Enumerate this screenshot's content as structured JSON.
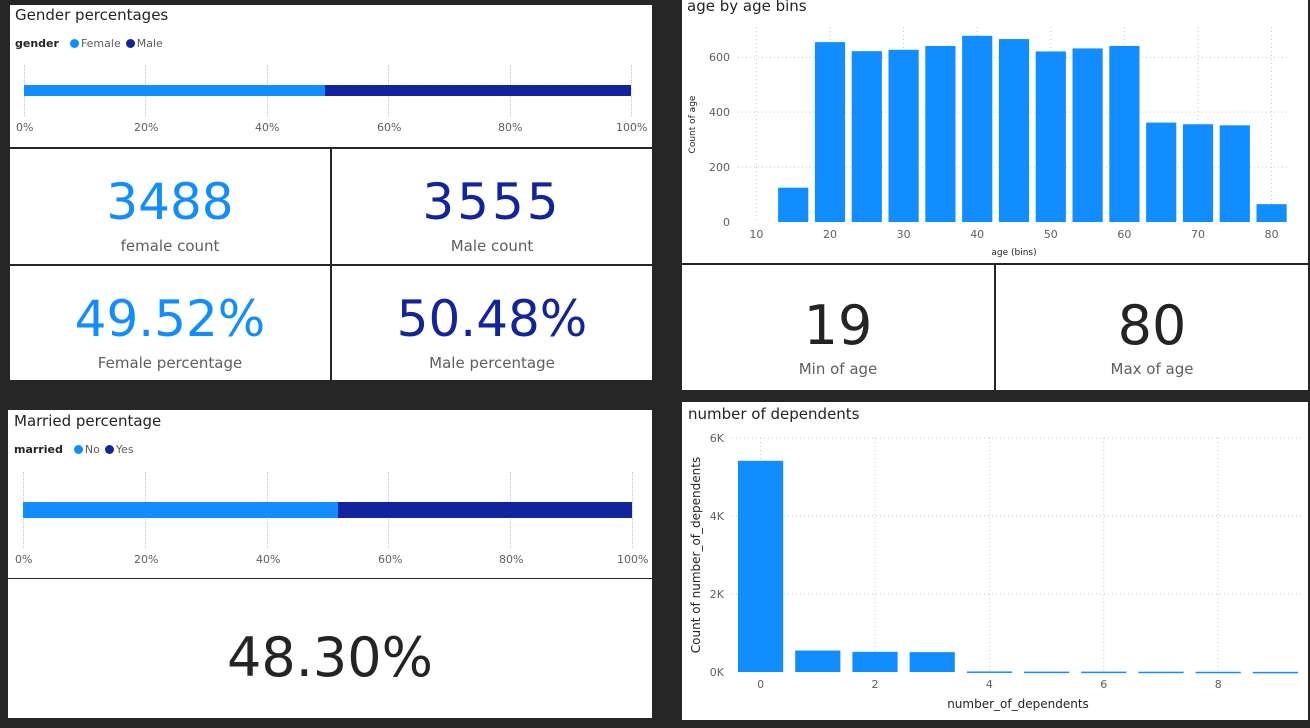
{
  "colors": {
    "light_blue": "#118dff",
    "dark_blue": "#12239e",
    "dark_text": "#252423"
  },
  "gender": {
    "title": "Gender percentages",
    "legend_title": "gender",
    "legend": [
      {
        "name": "Female",
        "color": "#118dff"
      },
      {
        "name": "Male",
        "color": "#12239e"
      }
    ],
    "ticks": [
      "0%",
      "20%",
      "40%",
      "60%",
      "80%",
      "100%"
    ],
    "female_value": "3488",
    "female_label": "female count",
    "male_value": "3555",
    "male_label": "Male count",
    "female_pct_value": "49.52%",
    "female_pct_label": "Female percentage",
    "male_pct_value": "50.48%",
    "male_pct_label": "Male percentage"
  },
  "married": {
    "title": "Married percentage",
    "legend_title": "married",
    "legend": [
      {
        "name": "No",
        "color": "#118dff"
      },
      {
        "name": "Yes",
        "color": "#12239e"
      }
    ],
    "ticks": [
      "0%",
      "20%",
      "40%",
      "60%",
      "80%",
      "100%"
    ],
    "card_value": "48.30%"
  },
  "age": {
    "title": "age by age bins",
    "min_value": "19",
    "min_label": "Min of age",
    "max_value": "80",
    "max_label": "Max of age"
  },
  "dependents": {
    "title": "number of dependents"
  },
  "chart_data": [
    {
      "id": "gender-bar",
      "type": "bar",
      "orientation": "horizontal-100%-stacked",
      "series": [
        {
          "name": "Female",
          "values": [
            49.52
          ]
        },
        {
          "name": "Male",
          "values": [
            50.48
          ]
        }
      ],
      "xlim": [
        0,
        100
      ]
    },
    {
      "id": "married-bar",
      "type": "bar",
      "orientation": "horizontal-100%-stacked",
      "series": [
        {
          "name": "No",
          "values": [
            51.7
          ]
        },
        {
          "name": "Yes",
          "values": [
            48.3
          ]
        }
      ],
      "xlim": [
        0,
        100
      ]
    },
    {
      "id": "age-hist",
      "type": "bar",
      "title": "age by age bins",
      "xlabel": "age (bins)",
      "ylabel": "Count of age",
      "x": [
        15,
        20,
        25,
        30,
        35,
        40,
        45,
        50,
        55,
        60,
        65,
        70,
        75,
        80
      ],
      "bin_width": 5,
      "values": [
        125,
        655,
        622,
        627,
        641,
        678,
        666,
        621,
        632,
        641,
        362,
        356,
        352,
        65
      ],
      "xlim": [
        7.5,
        82.5
      ],
      "ylim": [
        0,
        710
      ],
      "xticks": [
        10,
        20,
        30,
        40,
        50,
        60,
        70,
        80
      ],
      "yticks": [
        0,
        200,
        400,
        600
      ],
      "grid": true
    },
    {
      "id": "dependents-hist",
      "type": "bar",
      "title": "number of dependents",
      "xlabel": "number_of_dependents",
      "ylabel": "Count of number_of_dependents",
      "x": [
        0,
        1,
        2,
        3,
        4,
        5,
        6,
        7,
        8,
        9
      ],
      "values": [
        5416,
        551,
        517,
        509,
        14,
        10,
        10,
        8,
        6,
        4
      ],
      "xlim": [
        -0.5,
        9.5
      ],
      "ylim": [
        0,
        6000
      ],
      "xticks": [
        0,
        2,
        4,
        6,
        8
      ],
      "yticks": [
        0,
        2000,
        4000,
        6000
      ],
      "ytick_labels": [
        "0K",
        "2K",
        "4K",
        "6K"
      ],
      "grid": true
    }
  ]
}
